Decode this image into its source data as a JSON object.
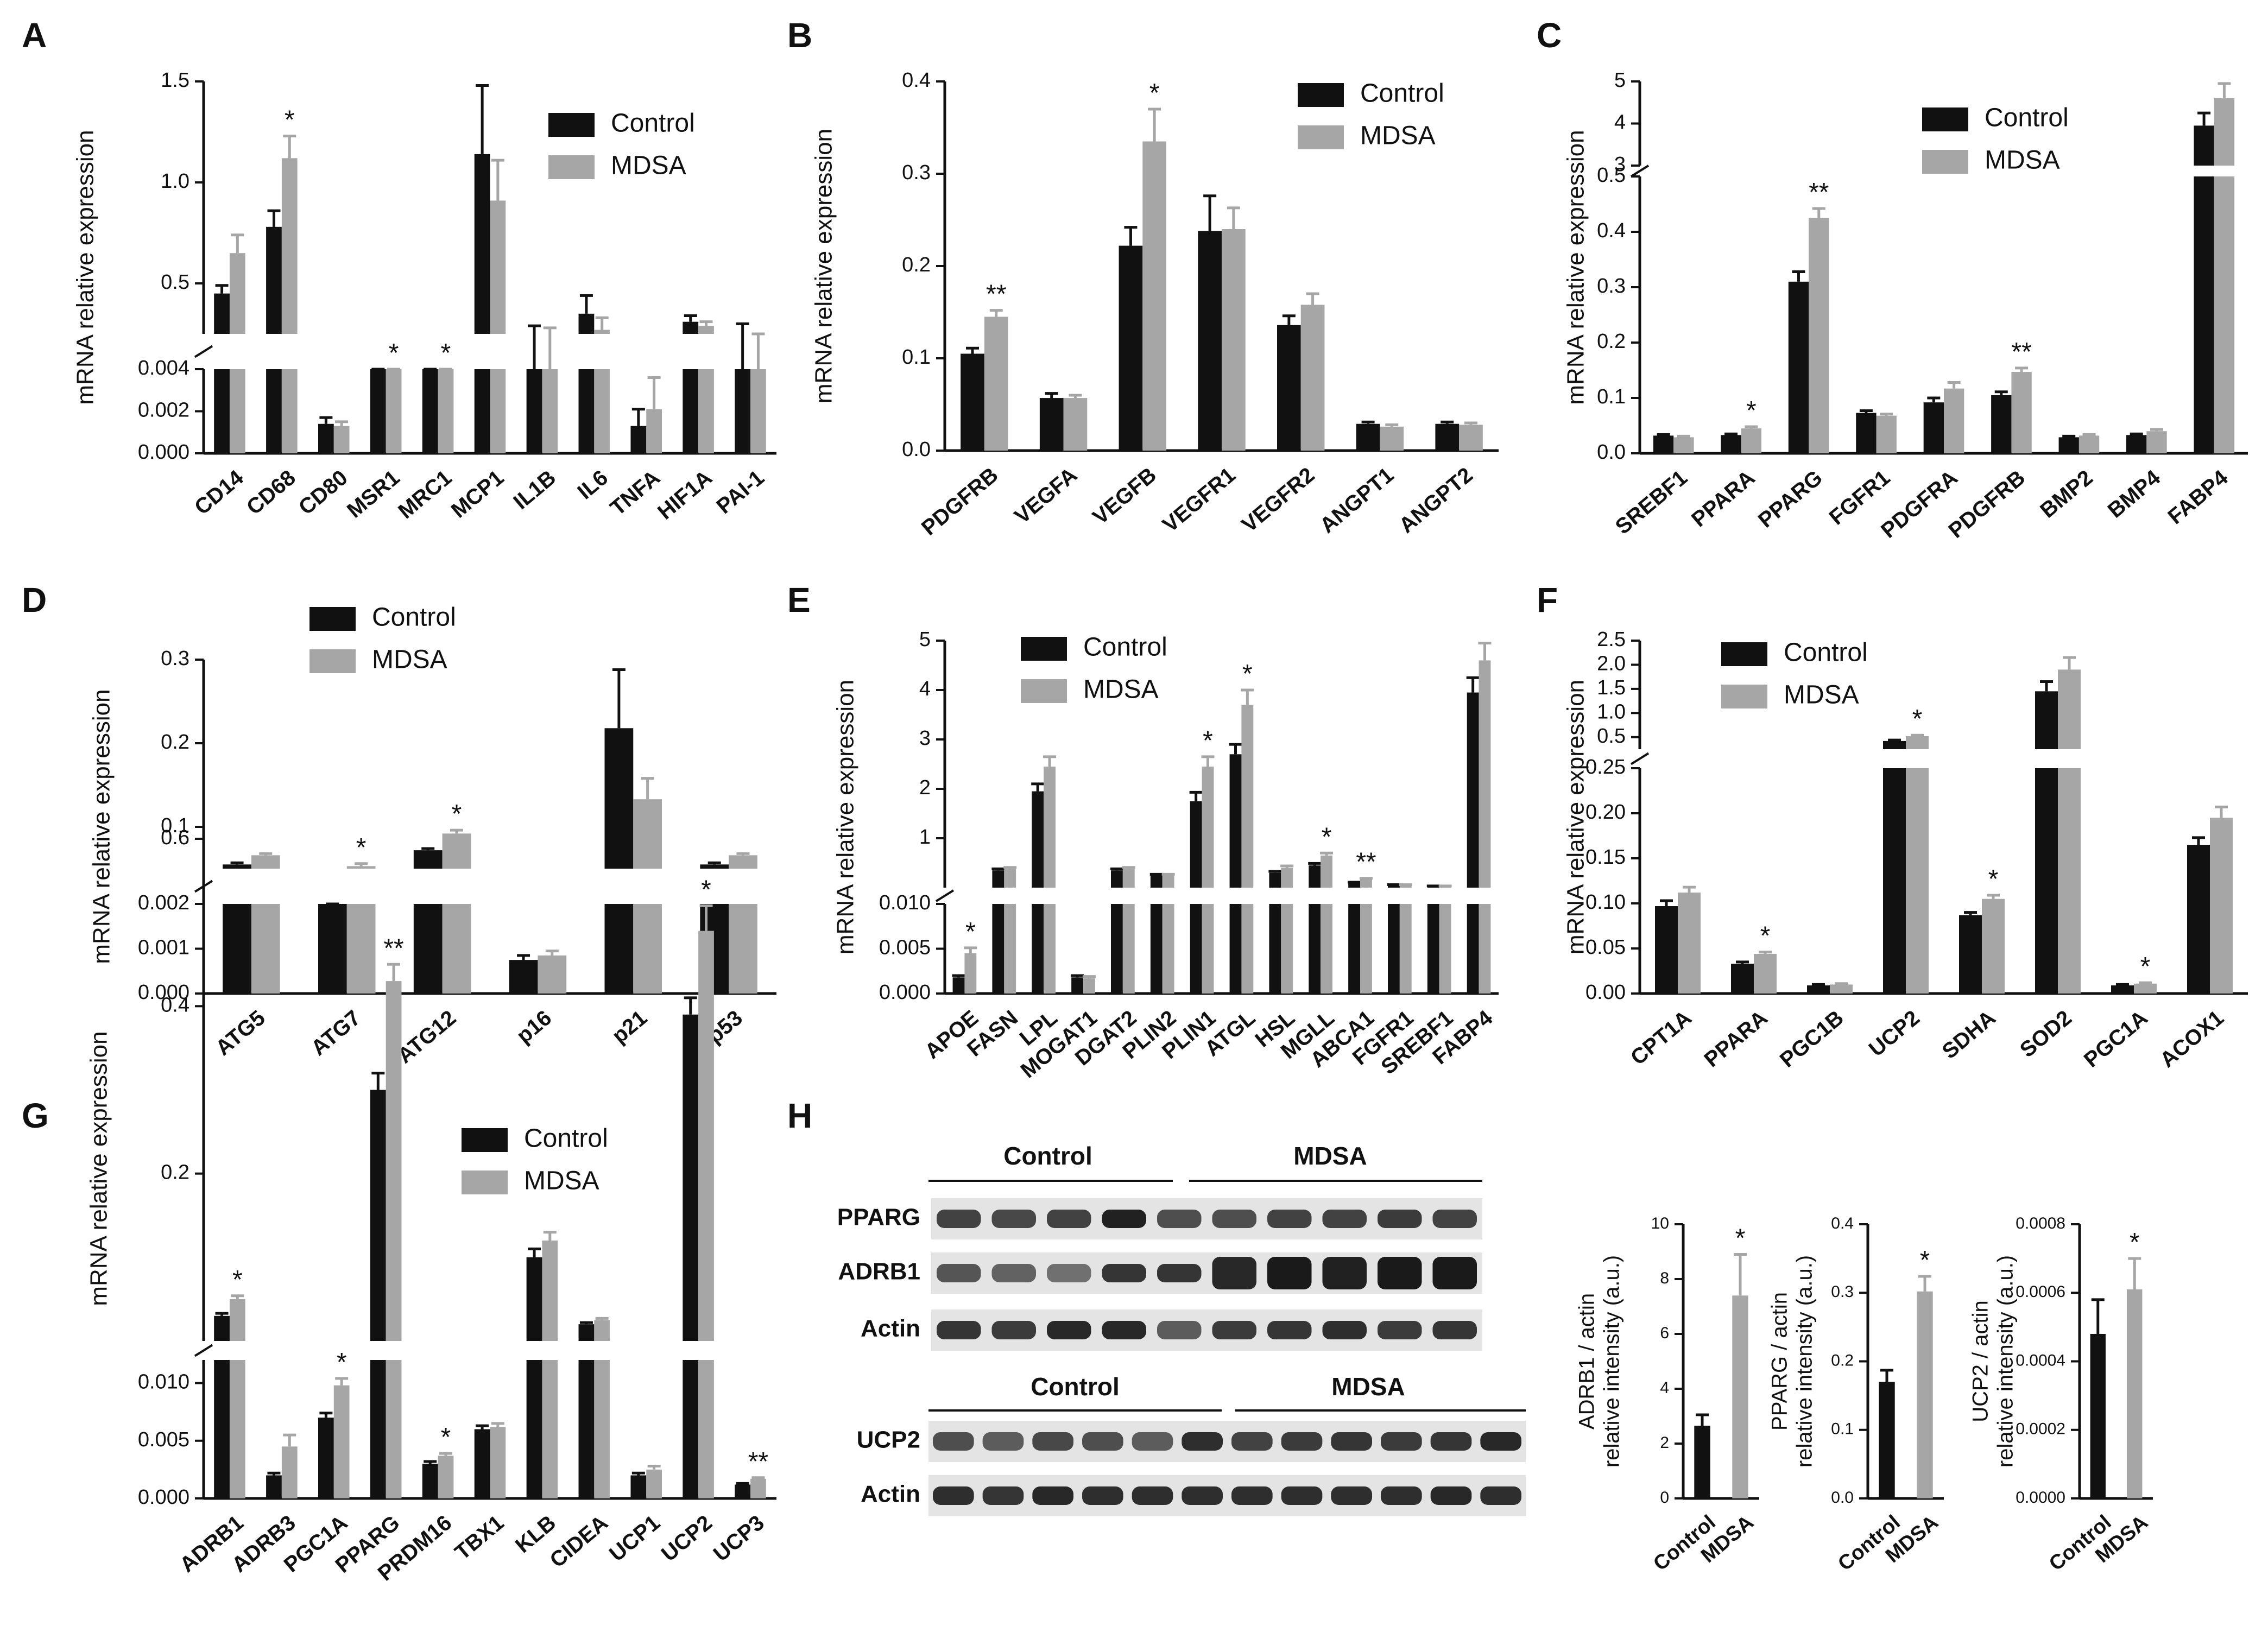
{
  "colors": {
    "control": "#111111",
    "mdsa": "#a6a6a6",
    "axis": "#111111",
    "blot_bg": "#e4e4e4",
    "band": "#1a1a1a"
  },
  "legend": {
    "control": "Control",
    "mdsa": "MDSA"
  },
  "ylabel": "mRNA relative expression",
  "chart_data": [
    {
      "panel": "A",
      "type": "bar",
      "categories": [
        "CD14",
        "CD68",
        "CD80",
        "MSR1",
        "MRC1",
        "MCP1",
        "IL1B",
        "IL6",
        "TNFA",
        "HIF1A",
        "PAI-1"
      ],
      "series": [
        {
          "name": "Control",
          "values": [
            0.45,
            0.78,
            0.0014,
            0.15,
            0.16,
            1.14,
            0.21,
            0.35,
            0.0013,
            0.31,
            0.23
          ],
          "errors": [
            0.04,
            0.08,
            0.0003,
            0.01,
            0.01,
            0.34,
            0.08,
            0.09,
            0.0008,
            0.03,
            0.07
          ]
        },
        {
          "name": "MDSA",
          "values": [
            0.65,
            1.12,
            0.0013,
            0.2,
            0.2,
            0.91,
            0.2,
            0.27,
            0.0021,
            0.29,
            0.2
          ],
          "errors": [
            0.09,
            0.11,
            0.0002,
            0.02,
            0.01,
            0.2,
            0.08,
            0.06,
            0.0015,
            0.02,
            0.05
          ]
        }
      ],
      "significance": [
        "",
        "*",
        "",
        "*",
        "*",
        "",
        "",
        "",
        "",
        "",
        ""
      ],
      "ybreak": {
        "lower_range": [
          0,
          0.004
        ],
        "upper_range": [
          0.25,
          1.5
        ]
      },
      "yticks_lower": [
        "0.000",
        "0.002",
        "0.004"
      ],
      "yticks_upper": [
        "0.5",
        "1.0",
        "1.5"
      ],
      "ylabel": "mRNA relative expression",
      "legend_position": "top-right"
    },
    {
      "panel": "B",
      "type": "bar",
      "categories": [
        "PDGFRB",
        "VEGFA",
        "VEGFB",
        "VEGFR1",
        "VEGFR2",
        "ANGPT1",
        "ANGPT2"
      ],
      "series": [
        {
          "name": "Control",
          "values": [
            0.105,
            0.057,
            0.222,
            0.238,
            0.136,
            0.029,
            0.029
          ],
          "errors": [
            0.006,
            0.005,
            0.02,
            0.038,
            0.01,
            0.002,
            0.002
          ]
        },
        {
          "name": "MDSA",
          "values": [
            0.145,
            0.057,
            0.335,
            0.24,
            0.158,
            0.026,
            0.028
          ],
          "errors": [
            0.007,
            0.003,
            0.035,
            0.023,
            0.012,
            0.002,
            0.002
          ]
        }
      ],
      "significance": [
        "**",
        "",
        "*",
        "",
        "",
        "",
        ""
      ],
      "ylim": [
        0,
        0.4
      ],
      "yticks": [
        "0.0",
        "0.1",
        "0.2",
        "0.3",
        "0.4"
      ],
      "ylabel": "mRNA relative expression",
      "legend_position": "top-right"
    },
    {
      "panel": "C",
      "type": "bar",
      "categories": [
        "SREBF1",
        "PPARA",
        "PPARG",
        "FGFR1",
        "PDGFRA",
        "PDGFRB",
        "BMP2",
        "BMP4",
        "FABP4"
      ],
      "series": [
        {
          "name": "Control",
          "values": [
            0.032,
            0.033,
            0.31,
            0.073,
            0.092,
            0.105,
            0.029,
            0.033,
            3.95
          ],
          "errors": [
            0.002,
            0.002,
            0.018,
            0.004,
            0.008,
            0.006,
            0.002,
            0.002,
            0.3
          ]
        },
        {
          "name": "MDSA",
          "values": [
            0.029,
            0.045,
            0.425,
            0.068,
            0.117,
            0.147,
            0.032,
            0.04,
            4.6
          ],
          "errors": [
            0.002,
            0.003,
            0.017,
            0.003,
            0.011,
            0.007,
            0.002,
            0.003,
            0.35
          ]
        }
      ],
      "significance": [
        "",
        "*",
        "**",
        "",
        "",
        "**",
        "",
        "",
        ""
      ],
      "ybreak": {
        "lower_range": [
          0,
          0.5
        ],
        "upper_range": [
          3,
          5
        ]
      },
      "yticks_lower": [
        "0.0",
        "0.1",
        "0.2",
        "0.3",
        "0.4",
        "0.5"
      ],
      "yticks_upper": [
        "3",
        "4",
        "5"
      ],
      "ylabel": "mRNA relative expression",
      "legend_position": "top-right"
    },
    {
      "panel": "D",
      "type": "bar",
      "categories": [
        "ATG5",
        "ATG7",
        "ATG12",
        "p16",
        "p21",
        "p53"
      ],
      "series": [
        {
          "name": "Control",
          "values": [
            0.055,
            0.042,
            0.072,
            0.00075,
            0.218,
            0.055
          ],
          "errors": [
            0.002,
            0.002,
            0.002,
            0.0001,
            0.07,
            0.002
          ]
        },
        {
          "name": "MDSA",
          "values": [
            0.066,
            0.053,
            0.092,
            0.00085,
            0.133,
            0.066
          ],
          "errors": [
            0.002,
            0.003,
            0.004,
            0.0001,
            0.025,
            0.002
          ]
        }
      ],
      "significance": [
        "",
        "*",
        "*",
        "",
        "",
        ""
      ],
      "ybreak": {
        "lower_range": [
          0,
          0.002
        ],
        "upper_range": [
          0.05,
          0.3
        ]
      },
      "yticks_lower": [
        "0.000",
        "0.001",
        "0.002"
      ],
      "yticks_upper": [
        "0.1",
        "0.2",
        "0.3"
      ],
      "ylabel": "mRNA relative expression",
      "legend_position": "top-center"
    },
    {
      "panel": "E",
      "type": "bar",
      "categories": [
        "APOE",
        "FASN",
        "LPL",
        "MOGAT1",
        "DGAT2",
        "PLIN2",
        "PLIN1",
        "ATGL",
        "HSL",
        "MGLL",
        "ABCA1",
        "FGFR1",
        "SREBF1",
        "FABP4"
      ],
      "series": [
        {
          "name": "Control",
          "values": [
            0.0018,
            0.35,
            1.95,
            0.0018,
            0.35,
            0.25,
            1.75,
            2.7,
            0.3,
            0.45,
            0.1,
            0.05,
            0.03,
            3.95
          ],
          "errors": [
            0.0002,
            0.03,
            0.15,
            0.0002,
            0.03,
            0.02,
            0.18,
            0.2,
            0.03,
            0.04,
            0.01,
            0.01,
            0.005,
            0.3
          ]
        },
        {
          "name": "MDSA",
          "values": [
            0.0045,
            0.38,
            2.45,
            0.0017,
            0.38,
            0.25,
            2.45,
            3.7,
            0.4,
            0.65,
            0.17,
            0.05,
            0.03,
            4.6
          ],
          "errors": [
            0.0006,
            0.03,
            0.2,
            0.0002,
            0.03,
            0.02,
            0.2,
            0.3,
            0.04,
            0.05,
            0.02,
            0.01,
            0.005,
            0.35
          ]
        }
      ],
      "significance": [
        "*",
        "",
        "",
        "",
        "",
        "",
        "*",
        "*",
        "",
        "*",
        "**",
        "",
        "",
        ""
      ],
      "ybreak": {
        "lower_range": [
          0,
          0.01
        ],
        "upper_range": [
          0,
          5
        ]
      },
      "yticks_lower": [
        "0.000",
        "0.005",
        "0.010"
      ],
      "yticks_upper": [
        "1",
        "2",
        "3",
        "4",
        "5"
      ],
      "ylabel": "mRNA relative expression",
      "legend_position": "top-center"
    },
    {
      "panel": "F",
      "type": "bar",
      "categories": [
        "CPT1A",
        "PPARA",
        "PGC1B",
        "UCP2",
        "SDHA",
        "SOD2",
        "PGC1A",
        "ACOX1"
      ],
      "series": [
        {
          "name": "Control",
          "values": [
            0.097,
            0.033,
            0.009,
            0.42,
            0.087,
            1.45,
            0.009,
            0.165
          ],
          "errors": [
            0.006,
            0.002,
            0.001,
            0.02,
            0.003,
            0.2,
            0.001,
            0.008
          ]
        },
        {
          "name": "MDSA",
          "values": [
            0.112,
            0.044,
            0.01,
            0.52,
            0.105,
            1.9,
            0.011,
            0.195
          ],
          "errors": [
            0.006,
            0.002,
            0.001,
            0.02,
            0.004,
            0.25,
            0.001,
            0.012
          ]
        }
      ],
      "significance": [
        "",
        "*",
        "",
        "*",
        "*",
        "",
        "*",
        ""
      ],
      "ybreak": {
        "lower_range": [
          0,
          0.25
        ],
        "upper_range": [
          0.25,
          2.5
        ]
      },
      "yticks_lower": [
        "0.00",
        "0.05",
        "0.10",
        "0.15",
        "0.20",
        "0.25"
      ],
      "yticks_upper": [
        "0.5",
        "1.0",
        "1.5",
        "2.0",
        "2.5"
      ],
      "ylabel": "mRNA relative expression",
      "legend_position": "top-left"
    },
    {
      "panel": "G",
      "type": "bar",
      "categories": [
        "ADRB1",
        "ADRB3",
        "PGC1A",
        "PPARG",
        "PRDM16",
        "TBX1",
        "KLB",
        "CIDEA",
        "UCP1",
        "UCP2",
        "UCP3"
      ],
      "series": [
        {
          "name": "Control",
          "values": [
            0.03,
            0.002,
            0.007,
            0.3,
            0.003,
            0.006,
            0.1,
            0.02,
            0.002,
            0.39,
            0.0012
          ],
          "errors": [
            0.003,
            0.0002,
            0.0004,
            0.02,
            0.0002,
            0.0003,
            0.01,
            0.002,
            0.0002,
            0.02,
            0.0001
          ]
        },
        {
          "name": "MDSA",
          "values": [
            0.05,
            0.0045,
            0.0098,
            0.43,
            0.0037,
            0.0062,
            0.12,
            0.025,
            0.0025,
            0.49,
            0.0017
          ],
          "errors": [
            0.004,
            0.001,
            0.0006,
            0.02,
            0.0002,
            0.0003,
            0.01,
            0.002,
            0.0003,
            0.03,
            0.0001
          ]
        }
      ],
      "significance": [
        "*",
        "",
        "*",
        "**",
        "*",
        "",
        "",
        "",
        "",
        "*",
        "**"
      ],
      "ybreak": {
        "lower_range": [
          0,
          0.012
        ],
        "upper_range": [
          0,
          0.6
        ]
      },
      "yticks_lower": [
        "0.000",
        "0.005",
        "0.010"
      ],
      "yticks_upper": [
        "0.2",
        "0.4",
        "0.6"
      ],
      "ylabel": "mRNA relative expression",
      "legend_position": "top-center"
    },
    {
      "panel": "H",
      "type": "western_blot",
      "blot1": {
        "group_labels": [
          "Control",
          "MDSA"
        ],
        "rows": [
          "PPARG",
          "ADRB1",
          "Actin"
        ],
        "lanes": 10
      },
      "blot2": {
        "group_labels": [
          "Control",
          "MDSA"
        ],
        "rows": [
          "UCP2",
          "Actin"
        ],
        "lanes": 12
      }
    },
    {
      "panel": "H1",
      "type": "bar",
      "categories": [
        "Control",
        "MDSA"
      ],
      "values": [
        2.65,
        7.4
      ],
      "errors": [
        0.4,
        1.5
      ],
      "significance": [
        "",
        "*"
      ],
      "ylim": [
        0,
        10
      ],
      "yticks": [
        "0",
        "2",
        "4",
        "6",
        "8",
        "10"
      ],
      "ylabel": "ADRB1 / actin\nrelative intensity (a.u.)"
    },
    {
      "panel": "H2",
      "type": "bar",
      "categories": [
        "Control",
        "MDSA"
      ],
      "values": [
        0.17,
        0.302
      ],
      "errors": [
        0.017,
        0.022
      ],
      "significance": [
        "",
        "*"
      ],
      "ylim": [
        0,
        0.4
      ],
      "yticks": [
        "0.0",
        "0.1",
        "0.2",
        "0.3",
        "0.4"
      ],
      "ylabel": "PPARG / actin\nrelative intensity (a.u.)"
    },
    {
      "panel": "H3",
      "type": "bar",
      "categories": [
        "Control",
        "MDSA"
      ],
      "values": [
        0.00048,
        0.00061
      ],
      "errors": [
        0.0001,
        9e-05
      ],
      "significance": [
        "",
        "*"
      ],
      "ylim": [
        0,
        0.0008
      ],
      "yticks": [
        "0.0000",
        "0.0002",
        "0.0004",
        "0.0006",
        "0.0008"
      ],
      "ylabel": "UCP2 / actin\nrelative intensity (a.u.)"
    }
  ]
}
